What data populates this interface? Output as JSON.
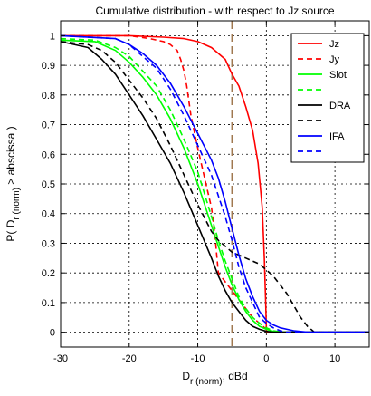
{
  "chart_data": {
    "type": "line",
    "title": "Cumulative distribution - with respect to Jz source",
    "xlabel_main": "D",
    "xlabel_sub": "r (norm)",
    "xlabel_unit": ", dBd",
    "ylabel": "P( D",
    "ylabel_sub": "r (norm)",
    "ylabel_tail": " > abscissa )",
    "xlim": [
      -30,
      15
    ],
    "ylim": [
      -0.05,
      1.05
    ],
    "x_ticks": [
      -30,
      -20,
      -10,
      0,
      10
    ],
    "x_tick_labels": [
      "-30",
      "-20",
      "-10",
      "0",
      "10"
    ],
    "y_ticks": [
      0,
      0.1,
      0.2,
      0.3,
      0.4,
      0.5,
      0.6,
      0.7,
      0.8,
      0.9,
      1
    ],
    "y_tick_labels": [
      "0",
      "0.1",
      "0.2",
      "0.3",
      "0.4",
      "0.5",
      "0.6",
      "0.7",
      "0.8",
      "0.9",
      "1"
    ],
    "grid": true,
    "legend_position": "top-right",
    "reference_line": {
      "x": -5,
      "color": "#a07850",
      "style": "dashed"
    },
    "series": [
      {
        "name": "Jz",
        "color": "#ff0000",
        "dash": "solid",
        "x": [
          -30,
          -20,
          -15,
          -12,
          -10,
          -8,
          -6,
          -5,
          -4,
          -3,
          -2,
          -1.2,
          -0.6,
          -0.3,
          -0.1,
          0,
          0.05,
          15
        ],
        "y": [
          1.0,
          1.0,
          0.995,
          0.99,
          0.98,
          0.96,
          0.92,
          0.87,
          0.83,
          0.76,
          0.68,
          0.57,
          0.42,
          0.25,
          0.1,
          0.02,
          0.0,
          0.0
        ]
      },
      {
        "name": "Jy",
        "color": "#ff0000",
        "dash": "dashed",
        "x": [
          -30,
          -20,
          -17,
          -15,
          -14,
          -13,
          -12.5,
          -12,
          -11.6,
          -11,
          -10,
          -9,
          -8,
          -7.5,
          -7.2,
          -7,
          -6,
          -5,
          -4,
          -3,
          -2,
          -1,
          0,
          0.5,
          15
        ],
        "y": [
          1.0,
          1.0,
          0.99,
          0.98,
          0.97,
          0.95,
          0.92,
          0.88,
          0.83,
          0.73,
          0.62,
          0.52,
          0.42,
          0.33,
          0.25,
          0.2,
          0.17,
          0.14,
          0.11,
          0.08,
          0.05,
          0.03,
          0.01,
          0.0,
          0.0
        ]
      },
      {
        "name": "Slot",
        "color": "#00ff00",
        "dash": "solid",
        "x": [
          -30,
          -25,
          -22,
          -20,
          -18,
          -16,
          -14,
          -12,
          -10,
          -8,
          -7,
          -6,
          -5,
          -4,
          -3,
          -2,
          -1,
          0,
          1,
          2,
          15
        ],
        "y": [
          0.985,
          0.98,
          0.95,
          0.91,
          0.86,
          0.8,
          0.72,
          0.62,
          0.5,
          0.36,
          0.29,
          0.22,
          0.16,
          0.11,
          0.07,
          0.04,
          0.02,
          0.01,
          0.003,
          0.0,
          0.0
        ]
      },
      {
        "name": "",
        "color": "#00ff00",
        "dash": "dashed",
        "x": [
          -30,
          -25,
          -22,
          -20,
          -18,
          -16,
          -14,
          -12,
          -10,
          -8,
          -7,
          -6,
          -5,
          -4,
          -3,
          -2,
          -1,
          0,
          1,
          2.5,
          15
        ],
        "y": [
          0.99,
          0.985,
          0.96,
          0.93,
          0.88,
          0.83,
          0.75,
          0.65,
          0.54,
          0.39,
          0.31,
          0.24,
          0.18,
          0.12,
          0.08,
          0.05,
          0.03,
          0.015,
          0.005,
          0.0,
          0.0
        ]
      },
      {
        "name": "DRA",
        "color": "#000000",
        "dash": "solid",
        "x": [
          -30,
          -26,
          -24,
          -22,
          -20,
          -18,
          -16,
          -14,
          -12,
          -10,
          -8,
          -7,
          -6,
          -5,
          -4,
          -3,
          -2,
          -1,
          0,
          1,
          15
        ],
        "y": [
          0.98,
          0.96,
          0.92,
          0.87,
          0.8,
          0.73,
          0.65,
          0.57,
          0.47,
          0.36,
          0.25,
          0.19,
          0.14,
          0.1,
          0.07,
          0.04,
          0.02,
          0.01,
          0.003,
          0.0,
          0.0
        ]
      },
      {
        "name": "",
        "color": "#000000",
        "dash": "dashed",
        "x": [
          -30,
          -26,
          -24,
          -22,
          -20,
          -18,
          -16,
          -14,
          -12,
          -10,
          -8,
          -7,
          -6,
          -5,
          -4,
          -3,
          -2,
          -1,
          0,
          1,
          2,
          3,
          4,
          5,
          6,
          7,
          15
        ],
        "y": [
          0.98,
          0.97,
          0.95,
          0.91,
          0.85,
          0.79,
          0.72,
          0.63,
          0.53,
          0.43,
          0.34,
          0.31,
          0.29,
          0.27,
          0.26,
          0.25,
          0.24,
          0.23,
          0.21,
          0.19,
          0.16,
          0.13,
          0.09,
          0.05,
          0.02,
          0.0,
          0.0
        ]
      },
      {
        "name": "IFA",
        "color": "#0000ff",
        "dash": "solid",
        "x": [
          -30,
          -22,
          -20,
          -18,
          -16,
          -14,
          -12,
          -10,
          -8,
          -7,
          -6,
          -5,
          -4,
          -3,
          -2,
          -1,
          0,
          1,
          2,
          3,
          4,
          6,
          15
        ],
        "y": [
          1.0,
          0.99,
          0.97,
          0.94,
          0.9,
          0.84,
          0.76,
          0.67,
          0.58,
          0.52,
          0.44,
          0.35,
          0.26,
          0.18,
          0.12,
          0.07,
          0.04,
          0.025,
          0.015,
          0.01,
          0.005,
          0.0,
          0.0
        ]
      },
      {
        "name": "",
        "color": "#0000ff",
        "dash": "dashed",
        "x": [
          -30,
          -22,
          -20,
          -18,
          -16,
          -14,
          -12,
          -10,
          -8,
          -7,
          -6,
          -5,
          -4,
          -3,
          -2,
          -1,
          0,
          1,
          2,
          3,
          15
        ],
        "y": [
          1.0,
          0.99,
          0.97,
          0.93,
          0.89,
          0.82,
          0.73,
          0.63,
          0.53,
          0.46,
          0.39,
          0.31,
          0.22,
          0.15,
          0.1,
          0.05,
          0.03,
          0.015,
          0.005,
          0.0,
          0.0
        ]
      }
    ]
  }
}
